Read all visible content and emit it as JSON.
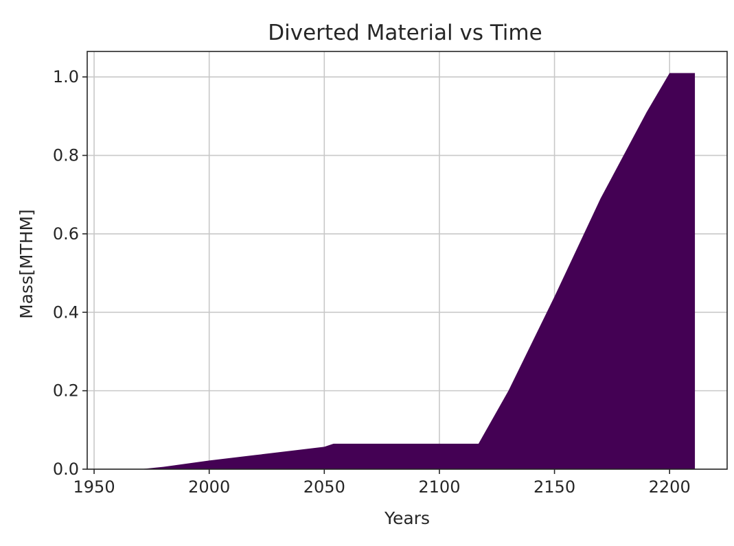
{
  "chart_data": {
    "type": "area",
    "title": "Diverted Material vs Time",
    "xlabel": "Years",
    "ylabel": "Mass[MTHM]",
    "xlim": [
      1947,
      2225
    ],
    "ylim": [
      0,
      1.065
    ],
    "xticks": [
      1950,
      2000,
      2050,
      2100,
      2150,
      2200
    ],
    "yticks": [
      0.0,
      0.2,
      0.4,
      0.6,
      0.8,
      1.0
    ],
    "ytick_labels": [
      "0.0",
      "0.2",
      "0.4",
      "0.6",
      "0.8",
      "1.0"
    ],
    "grid": true,
    "fill_color": "#440154",
    "series": [
      {
        "x": [
          1950,
          1970,
          1980,
          1990,
          2000,
          2010,
          2020,
          2030,
          2040,
          2050,
          2054,
          2060,
          2070,
          2080,
          2090,
          2100,
          2110,
          2117,
          2130,
          2150,
          2170,
          2190,
          2200,
          2211
        ],
        "values": [
          0.0,
          0.0,
          0.006,
          0.014,
          0.022,
          0.029,
          0.036,
          0.043,
          0.05,
          0.057,
          0.065,
          0.065,
          0.065,
          0.065,
          0.065,
          0.065,
          0.065,
          0.065,
          0.2,
          0.44,
          0.69,
          0.91,
          1.01,
          1.01
        ]
      }
    ]
  }
}
